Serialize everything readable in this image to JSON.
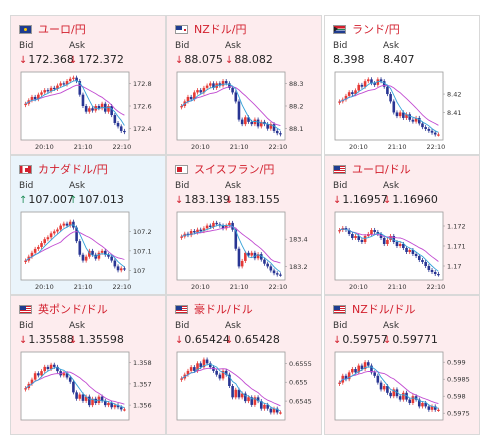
{
  "colors": {
    "up_candle": "#e53935",
    "down_candle": "#283593",
    "ma_short": "#35a2d8",
    "ma_long": "#c14bd1",
    "arrow_down": "#d21f2d",
    "arrow_up": "#1f8c57"
  },
  "cards": [
    {
      "title": "ユーロ/円",
      "flag": "eu-flag-icon",
      "bid_dir": "down",
      "bid": "172.368",
      "ask_dir": "down",
      "ask": "172.372",
      "chart_data": {
        "type": "candlestick",
        "x_ticks": [
          "20:10",
          "21:10",
          "22:10"
        ],
        "y_ticks": [
          "172.8",
          "172.6",
          "172.4"
        ],
        "ylim": [
          172.3,
          172.9
        ],
        "close": [
          172.62,
          172.65,
          172.68,
          172.66,
          172.7,
          172.72,
          172.74,
          172.73,
          172.76,
          172.75,
          172.78,
          172.8,
          172.79,
          172.82,
          172.84,
          172.85,
          172.82,
          172.7,
          172.6,
          172.55,
          172.58,
          172.56,
          172.6,
          172.58,
          172.62,
          172.55,
          172.6,
          172.52,
          172.45,
          172.42,
          172.38,
          172.37
        ]
      }
    },
    {
      "title": "NZドル/円",
      "flag": "nz-flag-icon",
      "bid_dir": "down",
      "bid": "88.075",
      "ask_dir": "down",
      "ask": "88.082",
      "chart_data": {
        "type": "candlestick",
        "x_ticks": [
          "20:10",
          "21:10",
          "22:10"
        ],
        "y_ticks": [
          "88.3",
          "88.2",
          "88.1"
        ],
        "ylim": [
          88.05,
          88.35
        ],
        "close": [
          88.2,
          88.22,
          88.24,
          88.23,
          88.26,
          88.27,
          88.26,
          88.28,
          88.29,
          88.3,
          88.28,
          88.3,
          88.29,
          88.31,
          88.3,
          88.28,
          88.26,
          88.22,
          88.14,
          88.12,
          88.15,
          88.13,
          88.12,
          88.14,
          88.11,
          88.13,
          88.12,
          88.1,
          88.12,
          88.09,
          88.08,
          88.075
        ]
      }
    },
    {
      "title": "ランド/円",
      "flag": "za-flag-icon",
      "bid_dir": "",
      "bid": "8.398",
      "ask_dir": "",
      "ask": "8.407",
      "chart_data": {
        "type": "candlestick",
        "x_ticks": [
          "20:10",
          "21:10",
          "22:10"
        ],
        "y_ticks": [
          "8.42",
          "8.41"
        ],
        "ylim": [
          8.395,
          8.432
        ],
        "close": [
          8.416,
          8.417,
          8.419,
          8.421,
          8.42,
          8.422,
          8.425,
          8.424,
          8.427,
          8.428,
          8.426,
          8.425,
          8.428,
          8.427,
          8.424,
          8.42,
          8.416,
          8.41,
          8.408,
          8.41,
          8.407,
          8.409,
          8.406,
          8.405,
          8.407,
          8.404,
          8.402,
          8.401,
          8.4,
          8.399,
          8.398,
          8.398
        ]
      }
    },
    {
      "title": "カナダドル/円",
      "flag": "ca-flag-icon",
      "bid_dir": "up",
      "bid": "107.007",
      "ask_dir": "up",
      "ask": "107.013",
      "chart_data": {
        "type": "candlestick",
        "x_ticks": [
          "20:10",
          "21:10",
          "22:10"
        ],
        "y_ticks": [
          "107.2",
          "107.1",
          "107"
        ],
        "ylim": [
          106.95,
          107.3
        ],
        "close": [
          107.05,
          107.07,
          107.09,
          107.11,
          107.12,
          107.14,
          107.16,
          107.17,
          107.19,
          107.2,
          107.21,
          107.23,
          107.24,
          107.23,
          107.25,
          107.22,
          107.15,
          107.08,
          107.05,
          107.07,
          107.1,
          107.08,
          107.06,
          107.09,
          107.1,
          107.08,
          107.07,
          107.05,
          107.02,
          107.0,
          107.01,
          107.007
        ]
      }
    },
    {
      "title": "スイスフラン/円",
      "flag": "ch-flag-icon",
      "bid_dir": "down",
      "bid": "183.139",
      "ask_dir": "down",
      "ask": "183.155",
      "chart_data": {
        "type": "candlestick",
        "x_ticks": [
          "20:10",
          "21:10",
          "22:10"
        ],
        "y_ticks": [
          "183.4",
          "183.2"
        ],
        "ylim": [
          183.1,
          183.6
        ],
        "close": [
          183.42,
          183.44,
          183.43,
          183.46,
          183.45,
          183.47,
          183.46,
          183.48,
          183.5,
          183.49,
          183.52,
          183.51,
          183.5,
          183.48,
          183.5,
          183.52,
          183.47,
          183.33,
          183.2,
          183.24,
          183.3,
          183.28,
          183.3,
          183.26,
          183.29,
          183.25,
          183.22,
          183.2,
          183.17,
          183.15,
          183.14,
          183.139
        ]
      }
    },
    {
      "title": "ユーロ/ドル",
      "flag": "us-flag-icon",
      "bid_dir": "down",
      "bid": "1.16957",
      "ask_dir": "down",
      "ask": "1.16960",
      "chart_data": {
        "type": "candlestick",
        "x_ticks": [
          "20:10",
          "21:10",
          "22:10"
        ],
        "y_ticks": [
          "1.172",
          "1.171",
          "1.17"
        ],
        "ylim": [
          1.1693,
          1.1727
        ],
        "close": [
          1.1718,
          1.1719,
          1.1718,
          1.1716,
          1.1714,
          1.1715,
          1.1713,
          1.1712,
          1.1715,
          1.1716,
          1.1718,
          1.1717,
          1.1716,
          1.1714,
          1.1711,
          1.1713,
          1.1715,
          1.1712,
          1.171,
          1.1711,
          1.1709,
          1.1707,
          1.1708,
          1.1706,
          1.1705,
          1.1703,
          1.1702,
          1.17,
          1.1698,
          1.1697,
          1.1696,
          1.16957
        ]
      }
    },
    {
      "title": "英ポンド/ドル",
      "flag": "us-flag-icon",
      "bid_dir": "down",
      "bid": "1.35588",
      "ask_dir": "down",
      "ask": "1.35598",
      "chart_data": {
        "type": "candlestick",
        "x_ticks": [],
        "y_ticks": [
          "1.358",
          "1.357",
          "1.356"
        ],
        "ylim": [
          1.3553,
          1.3585
        ],
        "close": [
          1.3568,
          1.357,
          1.3572,
          1.3575,
          1.3574,
          1.3576,
          1.3578,
          1.3577,
          1.3579,
          1.3578,
          1.3576,
          1.3574,
          1.3575,
          1.3573,
          1.3571,
          1.3566,
          1.3563,
          1.3565,
          1.3562,
          1.3564,
          1.356,
          1.3563,
          1.3561,
          1.3564,
          1.3562,
          1.356,
          1.3561,
          1.3559,
          1.356,
          1.3559,
          1.3558,
          1.3558
        ]
      }
    },
    {
      "title": "豪ドル/ドル",
      "flag": "us-flag-icon",
      "bid_dir": "down",
      "bid": "0.65424",
      "ask_dir": "down",
      "ask": "0.65428",
      "chart_data": {
        "type": "candlestick",
        "x_ticks": [],
        "y_ticks": [
          "0.6555",
          "0.655",
          "0.6545"
        ],
        "ylim": [
          0.654,
          0.6558
        ],
        "close": [
          0.6551,
          0.6552,
          0.6553,
          0.6554,
          0.6553,
          0.6555,
          0.6554,
          0.6556,
          0.6555,
          0.6554,
          0.6553,
          0.6552,
          0.6551,
          0.6553,
          0.6552,
          0.6549,
          0.6546,
          0.6548,
          0.6546,
          0.6547,
          0.6545,
          0.6546,
          0.6544,
          0.6546,
          0.6545,
          0.6543,
          0.6544,
          0.6543,
          0.6542,
          0.6543,
          0.6542,
          0.6542
        ]
      }
    },
    {
      "title": "NZドル/ドル",
      "flag": "us-flag-icon",
      "bid_dir": "down",
      "bid": "0.59757",
      "ask_dir": "down",
      "ask": "0.59771",
      "chart_data": {
        "type": "candlestick",
        "x_ticks": [],
        "y_ticks": [
          "0.599",
          "0.5985",
          "0.598",
          "0.5975"
        ],
        "ylim": [
          0.5973,
          0.5993
        ],
        "close": [
          0.5984,
          0.5986,
          0.5985,
          0.5987,
          0.5988,
          0.5987,
          0.5989,
          0.5988,
          0.599,
          0.5989,
          0.5987,
          0.5986,
          0.5984,
          0.5982,
          0.5983,
          0.5981,
          0.598,
          0.5982,
          0.598,
          0.5979,
          0.5981,
          0.5979,
          0.5978,
          0.598,
          0.5979,
          0.5977,
          0.5978,
          0.5977,
          0.5976,
          0.5977,
          0.5976,
          0.5976
        ]
      }
    }
  ]
}
